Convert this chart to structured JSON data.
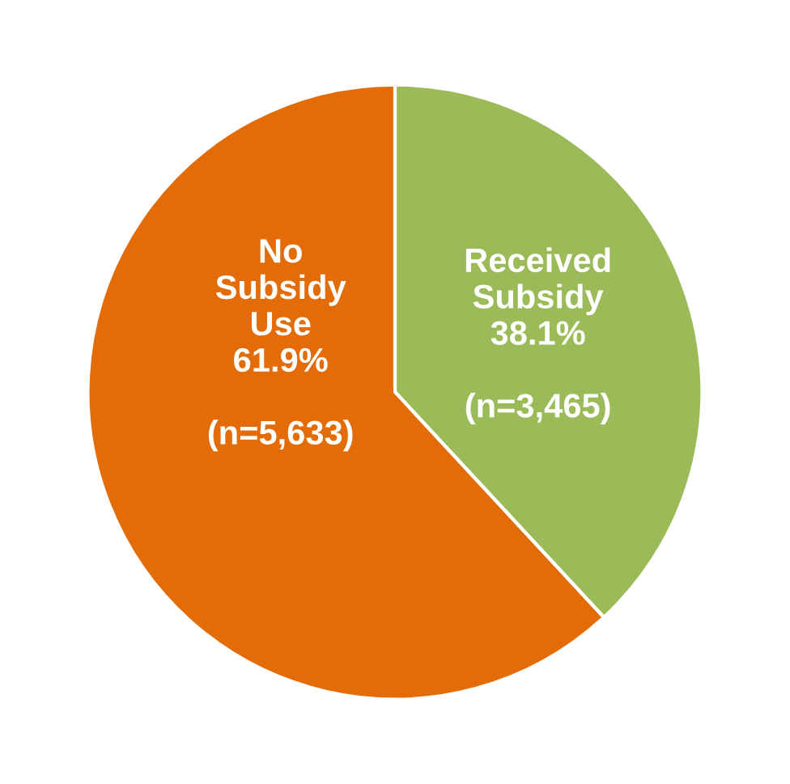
{
  "chart_data": {
    "type": "pie",
    "categories": [
      "Received\nSubsidy",
      "No\nSubsidy\nUse"
    ],
    "values": [
      38.1,
      61.9
    ],
    "colors": [
      "#9bbb59",
      "#e36c09"
    ],
    "value_labels": [
      "38.1%\n\n(n=3,465)",
      "61.9%\n\n(n=5,633)"
    ],
    "legend": false
  }
}
